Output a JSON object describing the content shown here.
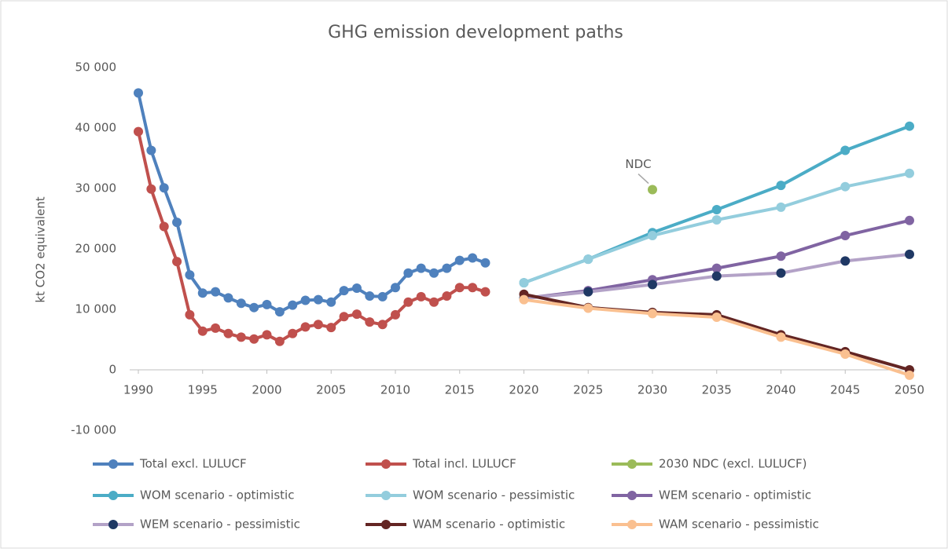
{
  "chart_data": {
    "type": "line",
    "title": "GHG emission development paths",
    "ylabel": "kt CO2 equivalent",
    "x": [
      1990,
      1991,
      1992,
      1993,
      1994,
      1995,
      1996,
      1997,
      1998,
      1999,
      2000,
      2001,
      2002,
      2003,
      2004,
      2005,
      2006,
      2007,
      2008,
      2009,
      2010,
      2011,
      2012,
      2013,
      2014,
      2015,
      2016,
      2017,
      2020,
      2025,
      2030,
      2035,
      2040,
      2045,
      2050
    ],
    "xlim": [
      1990,
      2050
    ],
    "xticks": [
      1990,
      1995,
      2000,
      2005,
      2010,
      2015,
      2020,
      2025,
      2030,
      2035,
      2040,
      2045,
      2050
    ],
    "ylim": [
      -10000,
      50000
    ],
    "yticks": [
      {
        "value": -10000,
        "label": "-10 000"
      },
      0,
      {
        "value": 10000,
        "label": "10 000"
      },
      {
        "value": 20000,
        "label": "20 000"
      },
      {
        "value": 30000,
        "label": "30 000"
      },
      {
        "value": 40000,
        "label": "40 000"
      },
      {
        "value": 50000,
        "label": "50 000"
      }
    ],
    "grid": false,
    "legend": "bottom",
    "annotations": [
      {
        "text": "NDC",
        "x": 2030,
        "y": 29800
      }
    ],
    "series": [
      {
        "name": "Total excl. LULUCF",
        "color": "#4f81bd",
        "values": [
          45800,
          36300,
          30100,
          24400,
          15700,
          12700,
          12900,
          11900,
          11000,
          10300,
          10800,
          9600,
          10700,
          11500,
          11600,
          11200,
          13100,
          13500,
          12200,
          12100,
          13600,
          16000,
          16800,
          16000,
          16800,
          18100,
          18500,
          17700,
          null,
          null,
          null,
          null,
          null,
          null,
          null
        ]
      },
      {
        "name": "Total incl. LULUCF",
        "color": "#c0504d",
        "values": [
          39400,
          29900,
          23700,
          17900,
          9100,
          6400,
          6900,
          6000,
          5400,
          5100,
          5800,
          4700,
          6000,
          7100,
          7500,
          7000,
          8800,
          9200,
          7900,
          7500,
          9100,
          11200,
          12100,
          11200,
          12200,
          13600,
          13600,
          12900,
          null,
          null,
          null,
          null,
          null,
          null,
          null
        ]
      },
      {
        "name": "2030 NDC (excl. LULUCF)",
        "color": "#9bbb59",
        "values": [
          null,
          null,
          null,
          null,
          null,
          null,
          null,
          null,
          null,
          null,
          null,
          null,
          null,
          null,
          null,
          null,
          null,
          null,
          null,
          null,
          null,
          null,
          null,
          null,
          null,
          null,
          null,
          null,
          null,
          null,
          29800,
          null,
          null,
          null,
          null
        ]
      },
      {
        "name": "WOM scenario - optimistic",
        "color": "#4bacc6",
        "values": [
          null,
          null,
          null,
          null,
          null,
          null,
          null,
          null,
          null,
          null,
          null,
          null,
          null,
          null,
          null,
          null,
          null,
          null,
          null,
          null,
          null,
          null,
          null,
          null,
          null,
          null,
          null,
          null,
          14400,
          18300,
          22700,
          26500,
          30500,
          36300,
          40300
        ]
      },
      {
        "name": "WOM scenario - pessimistic",
        "color": "#93cddd",
        "values": [
          null,
          null,
          null,
          null,
          null,
          null,
          null,
          null,
          null,
          null,
          null,
          null,
          null,
          null,
          null,
          null,
          null,
          null,
          null,
          null,
          null,
          null,
          null,
          null,
          null,
          null,
          null,
          null,
          14400,
          18300,
          22200,
          24800,
          26900,
          30300,
          32500
        ]
      },
      {
        "name": "WEM scenario - optimistic",
        "color": "#8064a2",
        "values": [
          null,
          null,
          null,
          null,
          null,
          null,
          null,
          null,
          null,
          null,
          null,
          null,
          null,
          null,
          null,
          null,
          null,
          null,
          null,
          null,
          null,
          null,
          null,
          null,
          null,
          null,
          null,
          null,
          11800,
          13100,
          14900,
          16800,
          18800,
          22200,
          24700
        ]
      },
      {
        "name": "WEM scenario - pessimistic",
        "color": "#b3a2c7",
        "marker_color": "#1f3864",
        "values": [
          null,
          null,
          null,
          null,
          null,
          null,
          null,
          null,
          null,
          null,
          null,
          null,
          null,
          null,
          null,
          null,
          null,
          null,
          null,
          null,
          null,
          null,
          null,
          null,
          null,
          null,
          null,
          null,
          11800,
          12900,
          14100,
          15500,
          16000,
          18000,
          19100
        ]
      },
      {
        "name": "WAM scenario - optimistic",
        "color": "#632523",
        "values": [
          null,
          null,
          null,
          null,
          null,
          null,
          null,
          null,
          null,
          null,
          null,
          null,
          null,
          null,
          null,
          null,
          null,
          null,
          null,
          null,
          null,
          null,
          null,
          null,
          null,
          null,
          null,
          null,
          12500,
          10300,
          9500,
          9100,
          5800,
          3000,
          0
        ]
      },
      {
        "name": "WAM scenario - pessimistic",
        "color": "#fac090",
        "values": [
          null,
          null,
          null,
          null,
          null,
          null,
          null,
          null,
          null,
          null,
          null,
          null,
          null,
          null,
          null,
          null,
          null,
          null,
          null,
          null,
          null,
          null,
          null,
          null,
          null,
          null,
          null,
          null,
          11600,
          10200,
          9300,
          8700,
          5400,
          2600,
          -900
        ]
      }
    ]
  }
}
